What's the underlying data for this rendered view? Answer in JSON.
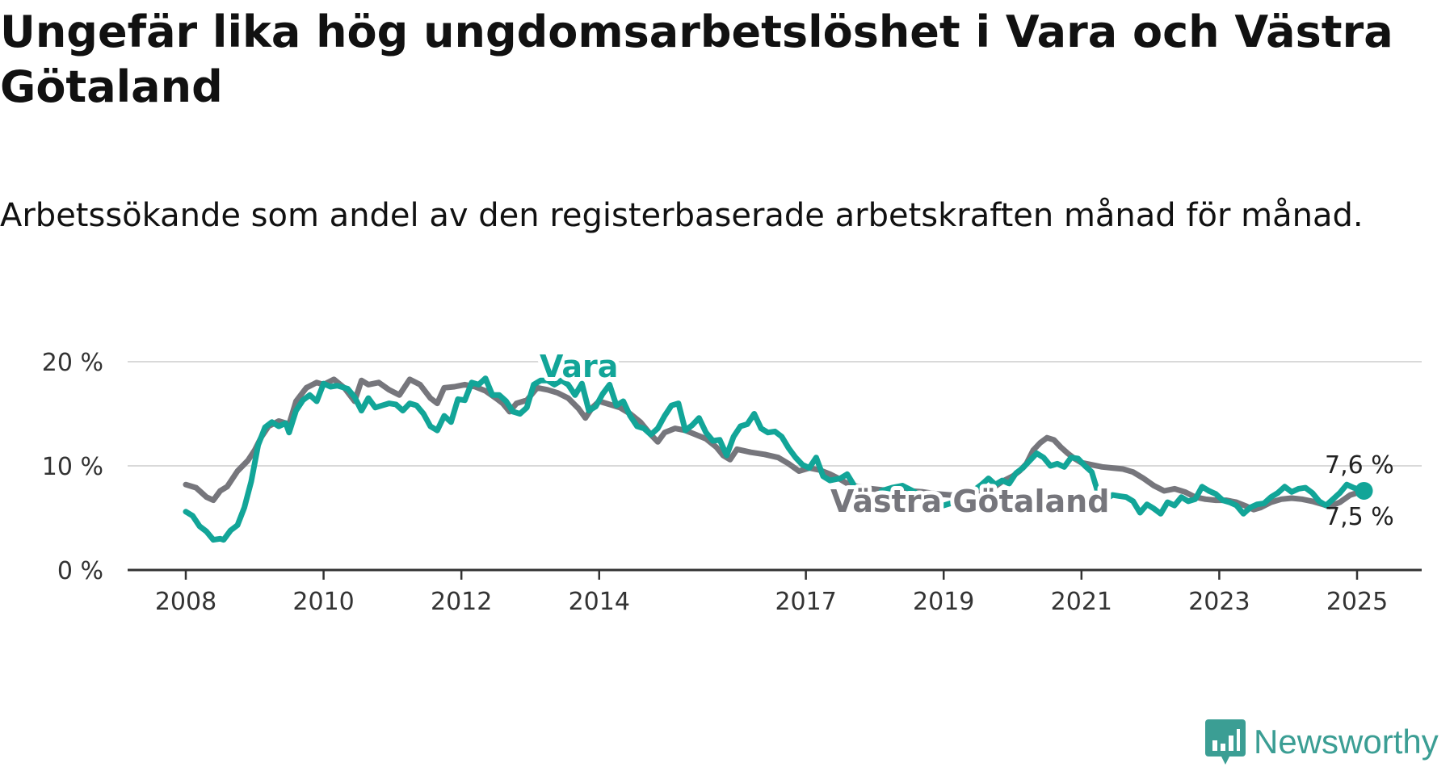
{
  "title": "Ungefär lika hög ungdomsarbetslöshet i Vara och Västra Götaland",
  "subtitle": "Arbetssökande som andel av den registerbaserade arbetskraften månad för månad.",
  "brand": {
    "name": "Newsworthy",
    "icon": "newsworthy-logo-icon",
    "color": "#3b9e94"
  },
  "chart_data": {
    "type": "line",
    "ylim": [
      0,
      20
    ],
    "yticks": [
      {
        "v": 0,
        "label": "0 %"
      },
      {
        "v": 10,
        "label": "10 %"
      },
      {
        "v": 20,
        "label": "20 %"
      }
    ],
    "xlim": [
      2008.0,
      2025.5
    ],
    "xticks": [
      {
        "v": 2008,
        "label": "2008"
      },
      {
        "v": 2010,
        "label": "2010"
      },
      {
        "v": 2012,
        "label": "2012"
      },
      {
        "v": 2014,
        "label": "2014"
      },
      {
        "v": 2017,
        "label": "2017"
      },
      {
        "v": 2019,
        "label": "2019"
      },
      {
        "v": 2021,
        "label": "2021"
      },
      {
        "v": 2023,
        "label": "2023"
      },
      {
        "v": 2025,
        "label": "2025"
      }
    ],
    "grid": true,
    "series": [
      {
        "name": "Västra Götaland",
        "color": "#76767c",
        "end_label": "7,5 %",
        "points": [
          [
            2008.0,
            8.2
          ],
          [
            2008.15,
            7.9
          ],
          [
            2008.3,
            7.0
          ],
          [
            2008.4,
            6.7
          ],
          [
            2008.5,
            7.6
          ],
          [
            2008.6,
            8.0
          ],
          [
            2008.75,
            9.5
          ],
          [
            2008.9,
            10.5
          ],
          [
            2009.0,
            11.5
          ],
          [
            2009.1,
            12.8
          ],
          [
            2009.2,
            13.8
          ],
          [
            2009.35,
            14.3
          ],
          [
            2009.5,
            14.0
          ],
          [
            2009.6,
            16.2
          ],
          [
            2009.75,
            17.5
          ],
          [
            2009.9,
            18.0
          ],
          [
            2010.0,
            17.8
          ],
          [
            2010.15,
            18.3
          ],
          [
            2010.3,
            17.5
          ],
          [
            2010.45,
            16.2
          ],
          [
            2010.55,
            18.2
          ],
          [
            2010.65,
            17.8
          ],
          [
            2010.8,
            18.0
          ],
          [
            2010.95,
            17.3
          ],
          [
            2011.1,
            16.8
          ],
          [
            2011.25,
            18.3
          ],
          [
            2011.4,
            17.8
          ],
          [
            2011.55,
            16.5
          ],
          [
            2011.65,
            16.0
          ],
          [
            2011.75,
            17.5
          ],
          [
            2011.9,
            17.6
          ],
          [
            2012.05,
            17.8
          ],
          [
            2012.2,
            17.6
          ],
          [
            2012.35,
            17.2
          ],
          [
            2012.5,
            16.5
          ],
          [
            2012.6,
            16.0
          ],
          [
            2012.7,
            15.2
          ],
          [
            2012.8,
            16.0
          ],
          [
            2012.95,
            16.3
          ],
          [
            2013.1,
            17.5
          ],
          [
            2013.25,
            17.3
          ],
          [
            2013.4,
            17.0
          ],
          [
            2013.55,
            16.5
          ],
          [
            2013.7,
            15.5
          ],
          [
            2013.8,
            14.6
          ],
          [
            2013.9,
            15.6
          ],
          [
            2014.0,
            16.2
          ],
          [
            2014.15,
            15.9
          ],
          [
            2014.3,
            15.6
          ],
          [
            2014.45,
            15.0
          ],
          [
            2014.6,
            14.2
          ],
          [
            2014.75,
            13.0
          ],
          [
            2014.85,
            12.3
          ],
          [
            2014.95,
            13.2
          ],
          [
            2015.1,
            13.6
          ],
          [
            2015.25,
            13.4
          ],
          [
            2015.4,
            13.0
          ],
          [
            2015.55,
            12.6
          ],
          [
            2015.7,
            11.8
          ],
          [
            2015.8,
            11.0
          ],
          [
            2015.9,
            10.6
          ],
          [
            2016.0,
            11.6
          ],
          [
            2016.2,
            11.3
          ],
          [
            2016.4,
            11.1
          ],
          [
            2016.6,
            10.8
          ],
          [
            2016.75,
            10.2
          ],
          [
            2016.9,
            9.5
          ],
          [
            2017.05,
            9.8
          ],
          [
            2017.2,
            9.6
          ],
          [
            2017.35,
            9.2
          ],
          [
            2017.5,
            8.7
          ],
          [
            2017.65,
            8.1
          ],
          [
            2017.8,
            8.0
          ],
          [
            2017.95,
            7.8
          ],
          [
            2018.1,
            7.7
          ],
          [
            2018.3,
            7.6
          ],
          [
            2018.5,
            7.6
          ],
          [
            2018.7,
            7.5
          ],
          [
            2018.9,
            7.3
          ],
          [
            2019.1,
            7.2
          ],
          [
            2019.3,
            7.3
          ],
          [
            2019.5,
            7.6
          ],
          [
            2019.7,
            7.8
          ],
          [
            2019.85,
            8.5
          ],
          [
            2020.0,
            9.0
          ],
          [
            2020.1,
            9.5
          ],
          [
            2020.2,
            10.2
          ],
          [
            2020.3,
            11.5
          ],
          [
            2020.4,
            12.2
          ],
          [
            2020.5,
            12.7
          ],
          [
            2020.6,
            12.5
          ],
          [
            2020.7,
            11.8
          ],
          [
            2020.8,
            11.2
          ],
          [
            2020.9,
            10.7
          ],
          [
            2021.0,
            10.3
          ],
          [
            2021.15,
            10.1
          ],
          [
            2021.3,
            9.9
          ],
          [
            2021.45,
            9.8
          ],
          [
            2021.6,
            9.7
          ],
          [
            2021.75,
            9.4
          ],
          [
            2021.9,
            8.8
          ],
          [
            2022.05,
            8.1
          ],
          [
            2022.2,
            7.6
          ],
          [
            2022.35,
            7.8
          ],
          [
            2022.5,
            7.5
          ],
          [
            2022.65,
            7.0
          ],
          [
            2022.8,
            6.8
          ],
          [
            2022.95,
            6.7
          ],
          [
            2023.1,
            6.7
          ],
          [
            2023.25,
            6.5
          ],
          [
            2023.4,
            6.1
          ],
          [
            2023.5,
            5.8
          ],
          [
            2023.6,
            6.0
          ],
          [
            2023.75,
            6.5
          ],
          [
            2023.9,
            6.8
          ],
          [
            2024.05,
            6.9
          ],
          [
            2024.2,
            6.8
          ],
          [
            2024.35,
            6.6
          ],
          [
            2024.5,
            6.3
          ],
          [
            2024.6,
            6.1
          ],
          [
            2024.75,
            6.5
          ],
          [
            2024.9,
            7.2
          ],
          [
            2025.0,
            7.4
          ],
          [
            2025.1,
            7.5
          ]
        ]
      },
      {
        "name": "Vara",
        "color": "#12a598",
        "end_label": "7,6 %",
        "points": [
          [
            2008.0,
            5.6
          ],
          [
            2008.1,
            5.2
          ],
          [
            2008.2,
            4.2
          ],
          [
            2008.3,
            3.7
          ],
          [
            2008.4,
            2.9
          ],
          [
            2008.5,
            3.0
          ],
          [
            2008.55,
            2.9
          ],
          [
            2008.65,
            3.8
          ],
          [
            2008.75,
            4.3
          ],
          [
            2008.85,
            6.0
          ],
          [
            2008.95,
            8.5
          ],
          [
            2009.05,
            12.0
          ],
          [
            2009.15,
            13.7
          ],
          [
            2009.25,
            14.2
          ],
          [
            2009.35,
            13.8
          ],
          [
            2009.45,
            14.1
          ],
          [
            2009.5,
            13.2
          ],
          [
            2009.6,
            15.3
          ],
          [
            2009.7,
            16.3
          ],
          [
            2009.8,
            16.8
          ],
          [
            2009.9,
            16.2
          ],
          [
            2010.0,
            17.9
          ],
          [
            2010.1,
            17.6
          ],
          [
            2010.2,
            17.7
          ],
          [
            2010.35,
            17.4
          ],
          [
            2010.45,
            16.6
          ],
          [
            2010.55,
            15.3
          ],
          [
            2010.65,
            16.5
          ],
          [
            2010.75,
            15.6
          ],
          [
            2010.85,
            15.8
          ],
          [
            2010.95,
            16.0
          ],
          [
            2011.05,
            15.9
          ],
          [
            2011.15,
            15.3
          ],
          [
            2011.25,
            16.0
          ],
          [
            2011.35,
            15.8
          ],
          [
            2011.45,
            15.0
          ],
          [
            2011.55,
            13.8
          ],
          [
            2011.65,
            13.4
          ],
          [
            2011.75,
            14.8
          ],
          [
            2011.85,
            14.2
          ],
          [
            2011.95,
            16.4
          ],
          [
            2012.05,
            16.3
          ],
          [
            2012.15,
            18.0
          ],
          [
            2012.25,
            17.8
          ],
          [
            2012.35,
            18.4
          ],
          [
            2012.45,
            16.8
          ],
          [
            2012.55,
            16.8
          ],
          [
            2012.65,
            16.2
          ],
          [
            2012.75,
            15.2
          ],
          [
            2012.85,
            15.0
          ],
          [
            2012.95,
            15.6
          ],
          [
            2013.05,
            17.8
          ],
          [
            2013.15,
            18.2
          ],
          [
            2013.25,
            18.2
          ],
          [
            2013.35,
            17.8
          ],
          [
            2013.45,
            18.2
          ],
          [
            2013.55,
            17.8
          ],
          [
            2013.65,
            16.8
          ],
          [
            2013.75,
            17.9
          ],
          [
            2013.85,
            15.3
          ],
          [
            2013.95,
            15.7
          ],
          [
            2014.05,
            16.9
          ],
          [
            2014.15,
            17.8
          ],
          [
            2014.25,
            15.8
          ],
          [
            2014.35,
            16.2
          ],
          [
            2014.45,
            14.8
          ],
          [
            2014.55,
            13.8
          ],
          [
            2014.65,
            13.6
          ],
          [
            2014.75,
            13.0
          ],
          [
            2014.85,
            13.6
          ],
          [
            2014.95,
            14.8
          ],
          [
            2015.05,
            15.8
          ],
          [
            2015.15,
            16.0
          ],
          [
            2015.25,
            13.4
          ],
          [
            2015.35,
            13.9
          ],
          [
            2015.45,
            14.6
          ],
          [
            2015.55,
            13.2
          ],
          [
            2015.65,
            12.4
          ],
          [
            2015.75,
            12.5
          ],
          [
            2015.85,
            11.0
          ],
          [
            2015.95,
            12.8
          ],
          [
            2016.05,
            13.8
          ],
          [
            2016.15,
            14.0
          ],
          [
            2016.25,
            15.0
          ],
          [
            2016.35,
            13.6
          ],
          [
            2016.45,
            13.2
          ],
          [
            2016.55,
            13.3
          ],
          [
            2016.65,
            12.8
          ],
          [
            2016.75,
            11.7
          ],
          [
            2016.85,
            10.8
          ],
          [
            2016.95,
            10.1
          ],
          [
            2017.05,
            9.8
          ],
          [
            2017.15,
            10.8
          ],
          [
            2017.25,
            9.0
          ],
          [
            2017.35,
            8.6
          ],
          [
            2017.5,
            8.8
          ],
          [
            2017.6,
            9.2
          ],
          [
            2017.7,
            8.1
          ],
          [
            2017.8,
            7.2
          ],
          [
            2017.95,
            6.0
          ],
          [
            2018.1,
            7.6
          ],
          [
            2018.25,
            7.9
          ],
          [
            2018.4,
            8.1
          ],
          [
            2018.55,
            7.6
          ],
          [
            2018.7,
            7.0
          ],
          [
            2018.85,
            6.4
          ],
          [
            2019.0,
            6.2
          ],
          [
            2019.15,
            6.5
          ],
          [
            2019.3,
            7.5
          ],
          [
            2019.45,
            7.7
          ],
          [
            2019.55,
            8.2
          ],
          [
            2019.65,
            8.8
          ],
          [
            2019.75,
            8.2
          ],
          [
            2019.85,
            8.6
          ],
          [
            2019.95,
            8.3
          ],
          [
            2020.05,
            9.3
          ],
          [
            2020.15,
            9.8
          ],
          [
            2020.25,
            10.5
          ],
          [
            2020.35,
            11.2
          ],
          [
            2020.45,
            10.8
          ],
          [
            2020.55,
            10.0
          ],
          [
            2020.65,
            10.2
          ],
          [
            2020.75,
            9.9
          ],
          [
            2020.85,
            10.8
          ],
          [
            2020.95,
            10.7
          ],
          [
            2021.05,
            10.0
          ],
          [
            2021.15,
            9.4
          ],
          [
            2021.25,
            7.2
          ],
          [
            2021.35,
            6.8
          ],
          [
            2021.45,
            7.2
          ],
          [
            2021.55,
            7.1
          ],
          [
            2021.65,
            7.0
          ],
          [
            2021.75,
            6.6
          ],
          [
            2021.85,
            5.5
          ],
          [
            2021.95,
            6.3
          ],
          [
            2022.05,
            5.9
          ],
          [
            2022.15,
            5.4
          ],
          [
            2022.25,
            6.5
          ],
          [
            2022.35,
            6.2
          ],
          [
            2022.45,
            7.0
          ],
          [
            2022.55,
            6.6
          ],
          [
            2022.65,
            6.8
          ],
          [
            2022.75,
            8.0
          ],
          [
            2022.85,
            7.6
          ],
          [
            2022.95,
            7.3
          ],
          [
            2023.05,
            6.7
          ],
          [
            2023.15,
            6.5
          ],
          [
            2023.25,
            6.2
          ],
          [
            2023.35,
            5.4
          ],
          [
            2023.45,
            6.0
          ],
          [
            2023.55,
            6.3
          ],
          [
            2023.65,
            6.4
          ],
          [
            2023.75,
            7.0
          ],
          [
            2023.85,
            7.4
          ],
          [
            2023.95,
            8.0
          ],
          [
            2024.05,
            7.5
          ],
          [
            2024.15,
            7.8
          ],
          [
            2024.25,
            7.9
          ],
          [
            2024.35,
            7.4
          ],
          [
            2024.45,
            6.6
          ],
          [
            2024.55,
            6.2
          ],
          [
            2024.65,
            6.8
          ],
          [
            2024.75,
            7.4
          ],
          [
            2024.85,
            8.2
          ],
          [
            2024.95,
            7.9
          ],
          [
            2025.05,
            7.7
          ],
          [
            2025.1,
            7.6
          ]
        ]
      }
    ]
  }
}
